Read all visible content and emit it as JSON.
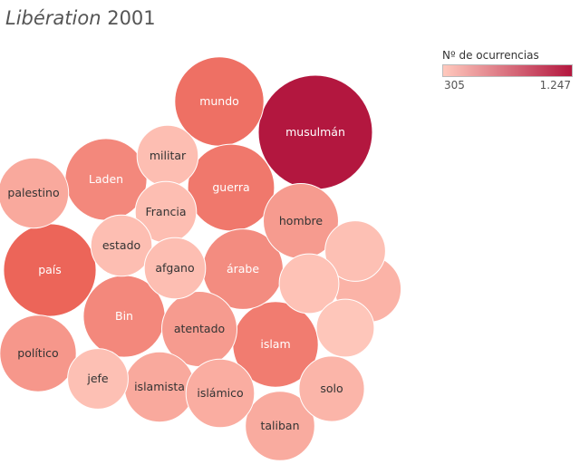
{
  "title": {
    "publication": "Libération",
    "year": "2001"
  },
  "legend": {
    "title": "Nº de ocurrencias",
    "min_label": "305",
    "max_label": "1.247",
    "min_color": "#ffc9bd",
    "max_color": "#b3173f"
  },
  "chart_data": {
    "type": "bubble",
    "value_range": [
      305,
      1247
    ],
    "bubbles": [
      {
        "label": "musulmán",
        "value": 1247
      },
      {
        "label": "país",
        "value": 820
      },
      {
        "label": "mundo",
        "value": 760
      },
      {
        "label": "guerra",
        "value": 720
      },
      {
        "label": "islam",
        "value": 700
      },
      {
        "label": "Laden",
        "value": 640
      },
      {
        "label": "Bin",
        "value": 640
      },
      {
        "label": "árabe",
        "value": 620
      },
      {
        "label": "político",
        "value": 560
      },
      {
        "label": "hombre",
        "value": 540
      },
      {
        "label": "atentado",
        "value": 540
      },
      {
        "label": "palestino",
        "value": 470
      },
      {
        "label": "islamista",
        "value": 470
      },
      {
        "label": "taliban",
        "value": 460
      },
      {
        "label": "islámico",
        "value": 450
      },
      {
        "label": "",
        "value": 420
      },
      {
        "label": "solo",
        "value": 410
      },
      {
        "label": "militar",
        "value": 360
      },
      {
        "label": "Francia",
        "value": 360
      },
      {
        "label": "estado",
        "value": 360
      },
      {
        "label": "afgano",
        "value": 360
      },
      {
        "label": "jefe",
        "value": 350
      },
      {
        "label": "",
        "value": 350
      },
      {
        "label": "",
        "value": 340
      },
      {
        "label": "",
        "value": 320
      }
    ]
  }
}
